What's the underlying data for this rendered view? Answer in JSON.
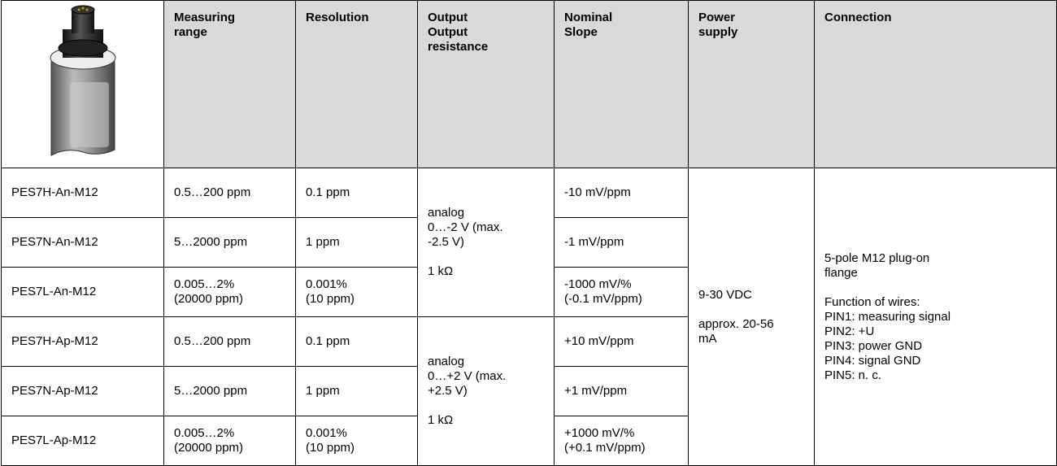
{
  "header": {
    "columns": [
      [
        "Measuring",
        "range"
      ],
      [
        "Resolution"
      ],
      [
        "Output",
        "Output",
        "resistance"
      ],
      [
        "Nominal",
        "Slope"
      ],
      [
        "Power",
        "supply"
      ],
      [
        "Connection"
      ]
    ]
  },
  "rows": [
    {
      "model": "PES7H-An-M12",
      "range": [
        "0.5…200 ppm"
      ],
      "resolution": [
        "0.1 ppm"
      ],
      "slope": [
        "-10 mV/ppm"
      ]
    },
    {
      "model": "PES7N-An-M12",
      "range": [
        "5…2000 ppm"
      ],
      "resolution": [
        "1 ppm"
      ],
      "slope": [
        "-1 mV/ppm"
      ]
    },
    {
      "model": "PES7L-An-M12",
      "range": [
        "0.005…2%",
        "(20000 ppm)"
      ],
      "resolution": [
        "0.001%",
        "(10 ppm)"
      ],
      "slope": [
        "-1000 mV/%",
        "(-0.1 mV/ppm)"
      ]
    },
    {
      "model": "PES7H-Ap-M12",
      "range": [
        "0.5…200 ppm"
      ],
      "resolution": [
        "0.1 ppm"
      ],
      "slope": [
        "+10 mV/ppm"
      ]
    },
    {
      "model": "PES7N-Ap-M12",
      "range": [
        "5…2000 ppm"
      ],
      "resolution": [
        "1 ppm"
      ],
      "slope": [
        "+1 mV/ppm"
      ]
    },
    {
      "model": "PES7L-Ap-M12",
      "range": [
        "0.005…2%",
        "(20000 ppm)"
      ],
      "resolution": [
        "0.001%",
        "(10 ppm)"
      ],
      "slope": [
        "+1000 mV/%",
        "(+0.1 mV/ppm)"
      ]
    }
  ],
  "output_groups": [
    [
      [
        "analog",
        "0…-2 V (max.",
        "-2.5 V)"
      ],
      [
        "1 kΩ"
      ]
    ],
    [
      [
        "analog",
        "0…+2 V (max.",
        "+2.5 V)"
      ],
      [
        "1 kΩ"
      ]
    ]
  ],
  "power": [
    [
      "9-30 VDC"
    ],
    [
      "approx. 20-56",
      "mA"
    ]
  ],
  "connection": [
    [
      "5-pole M12 plug-on",
      "flange"
    ],
    [
      "Function of wires:",
      "PIN1: measuring signal",
      "PIN2: +U",
      "PIN3: power GND",
      "PIN4: signal GND",
      "PIN5: n. c."
    ]
  ]
}
